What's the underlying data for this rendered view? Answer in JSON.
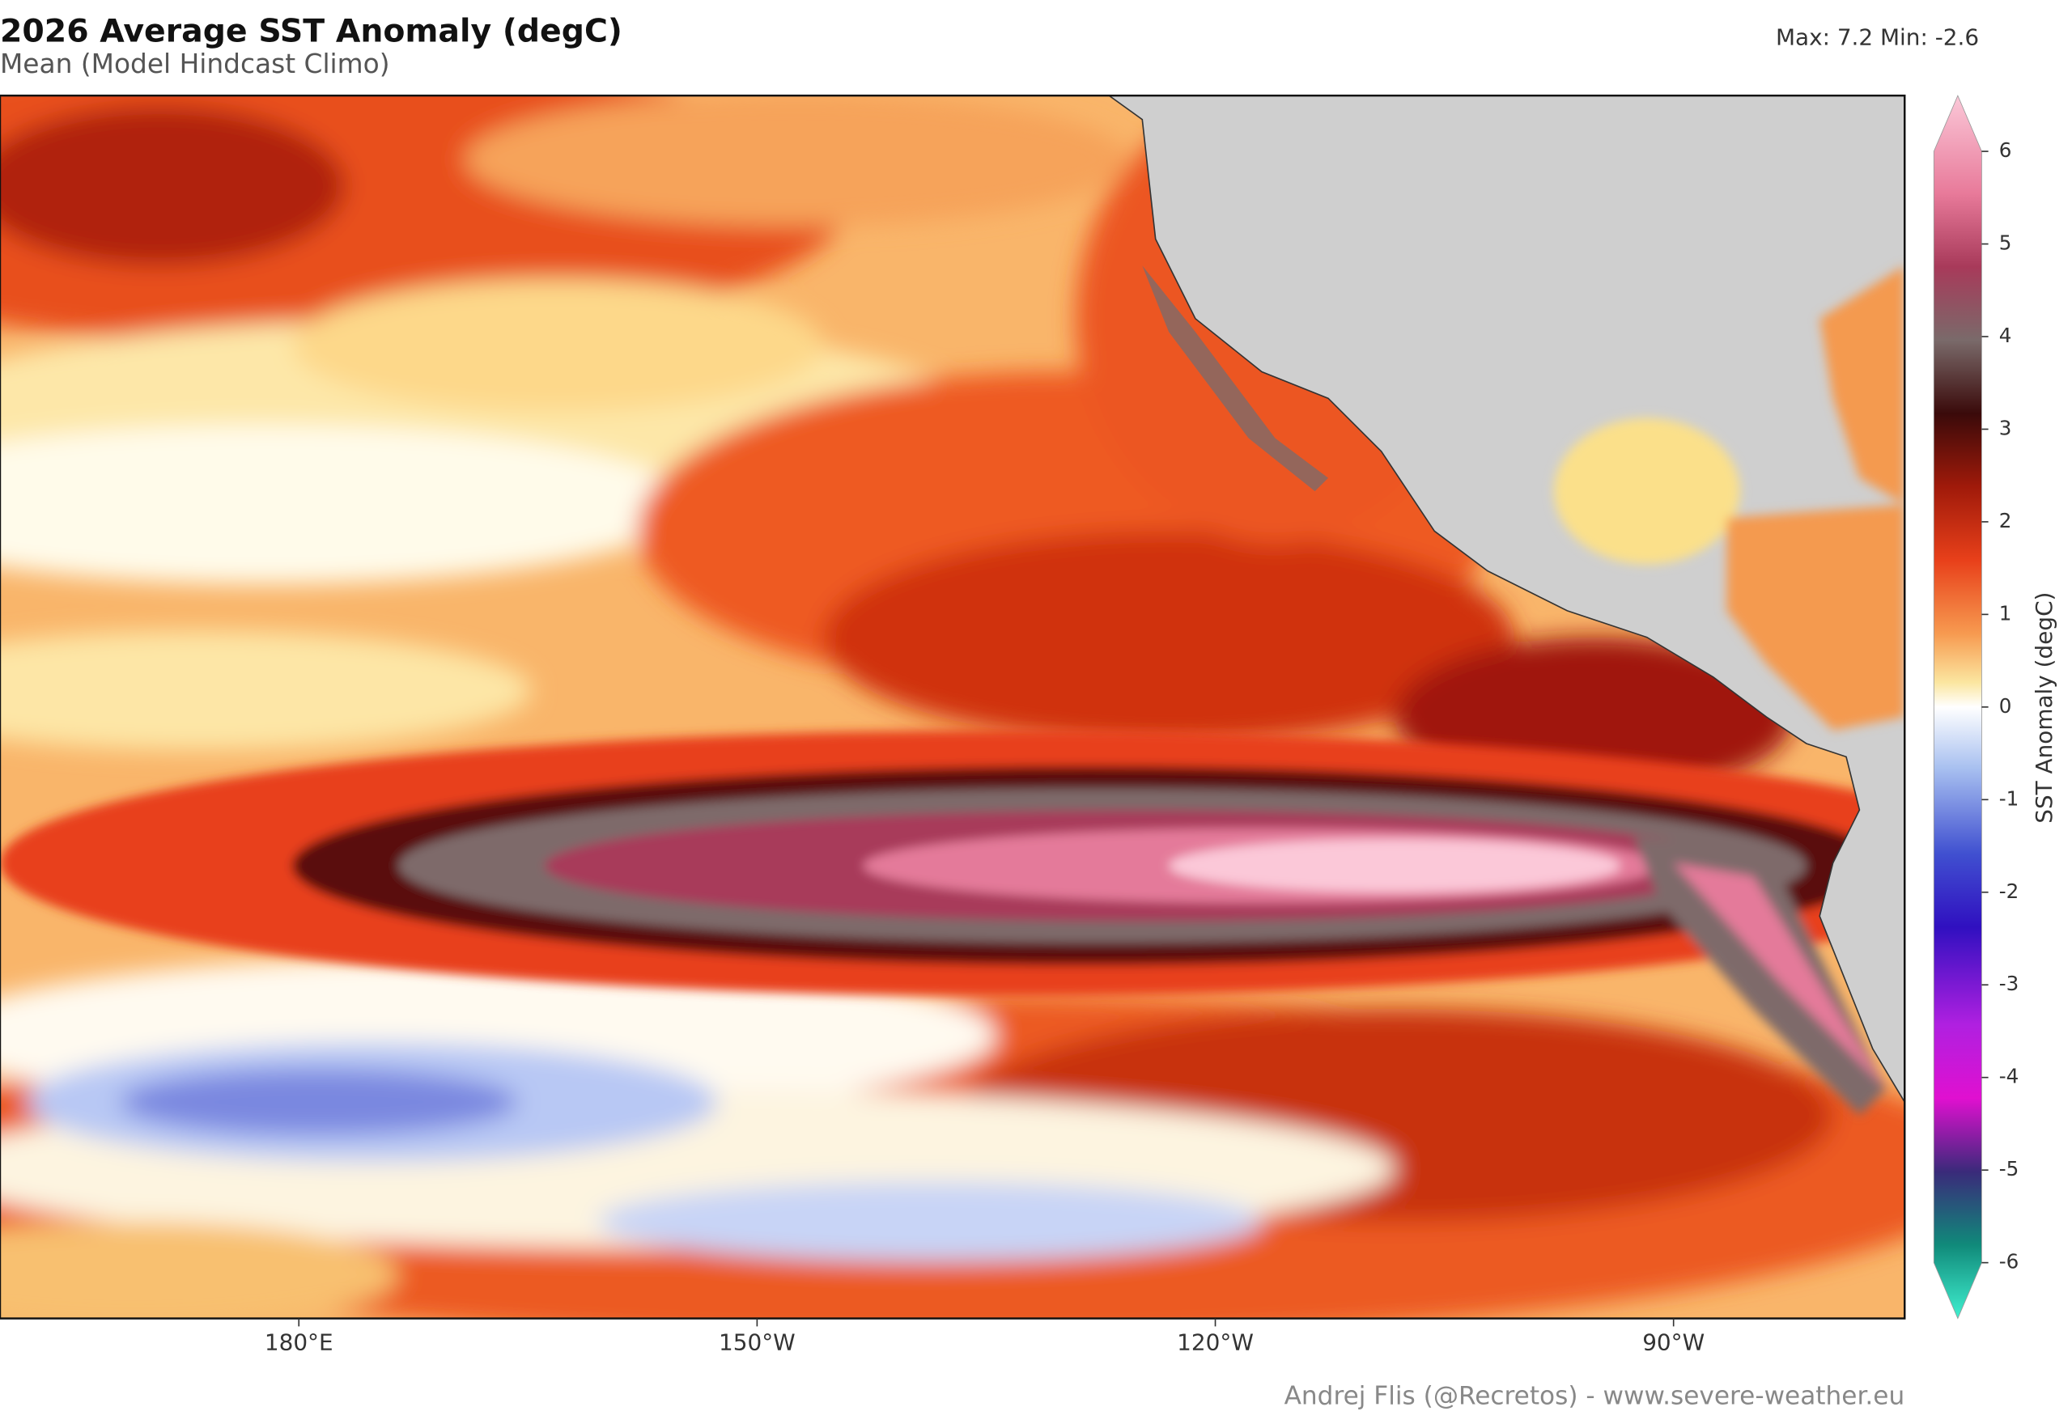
{
  "header": {
    "title": "2026 Average SST Anomaly (degC)",
    "subtitle": "Mean (Model Hindcast Climo)",
    "stats": "Max: 7.2  Min: -2.6"
  },
  "map": {
    "x_labels": [
      "180°E",
      "150°W",
      "120°W",
      "90°W"
    ]
  },
  "colorbar": {
    "label": "SST Anomaly (degC)",
    "ticks": [
      6,
      5,
      4,
      3,
      2,
      1,
      0,
      -1,
      -2,
      -3,
      -4,
      -5,
      -6
    ]
  },
  "credit": "Andrej Flis (@Recretos) - www.severe-weather.eu"
}
